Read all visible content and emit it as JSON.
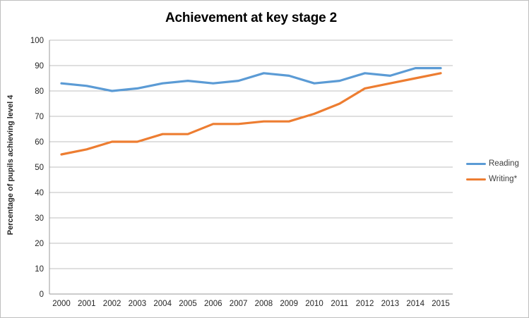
{
  "chart_data": {
    "type": "line",
    "title": "Achievement at key stage 2",
    "xlabel": "",
    "ylabel": "Percentage of pupils achieving level 4",
    "categories": [
      "2000",
      "2001",
      "2002",
      "2003",
      "2004",
      "2005",
      "2006",
      "2007",
      "2008",
      "2009",
      "2010",
      "2011",
      "2012",
      "2013",
      "2014",
      "2015"
    ],
    "series": [
      {
        "name": "Reading",
        "color": "#5B9BD5",
        "values": [
          83,
          82,
          80,
          81,
          83,
          84,
          83,
          84,
          87,
          86,
          83,
          84,
          87,
          86,
          89,
          89
        ]
      },
      {
        "name": "Writing*",
        "color": "#ED7D31",
        "values": [
          55,
          57,
          60,
          60,
          63,
          63,
          67,
          67,
          68,
          68,
          71,
          75,
          81,
          83,
          85,
          87
        ]
      }
    ],
    "ylim": [
      0,
      100
    ],
    "yticks": [
      0,
      10,
      20,
      30,
      40,
      50,
      60,
      70,
      80,
      90,
      100
    ],
    "grid": "horizontal-gridlines",
    "legend_position": "right"
  },
  "style": {
    "gridline_color": "#bfbfbf",
    "axis_line_color": "#9a9a9a",
    "tick_label_color": "#262626",
    "frame_border_color": "#bfbfbf",
    "background": "#ffffff"
  }
}
